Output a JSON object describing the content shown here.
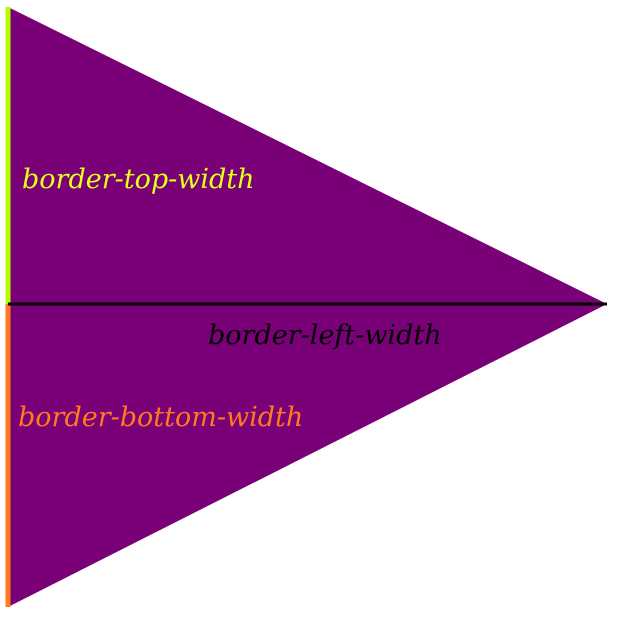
{
  "labels": {
    "top": "border-top-width",
    "left": "border-left-width",
    "bottom": "border-bottom-width"
  },
  "colors": {
    "triangle_fill": "#7a0078",
    "top_border": "#b7ff00",
    "bottom_border": "#ff7a1f",
    "center_line": "#000000",
    "top_label": "#e3ff1a",
    "bottom_label": "#ff7a1f",
    "left_label": "#000000",
    "background": "#ffffff"
  }
}
